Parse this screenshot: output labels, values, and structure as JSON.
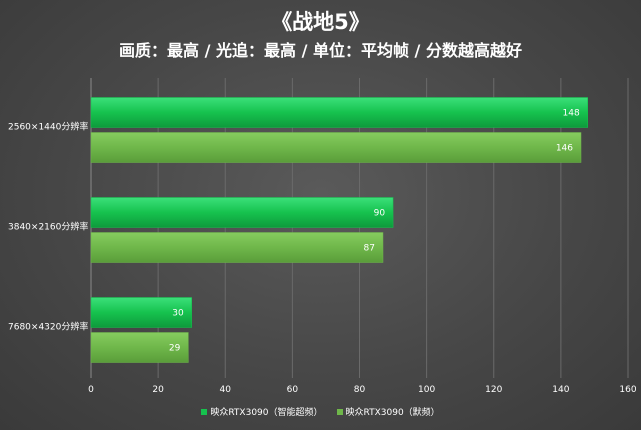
{
  "title": "《战地5》",
  "subtitle": "画质：最高 / 光追：最高 / 单位：平均帧 / 分数越高越好",
  "chart_data": {
    "type": "bar",
    "orientation": "horizontal",
    "categories": [
      "2560×1440分辨率",
      "3840×2160分辨率",
      "7680×4320分辨率"
    ],
    "series": [
      {
        "name": "映众RTX3090（智能超频）",
        "values": [
          148,
          90,
          30
        ],
        "color": "#16c24e"
      },
      {
        "name": "映众RTX3090（默频）",
        "values": [
          146,
          87,
          29
        ],
        "color": "#6fb74a"
      }
    ],
    "xlim": [
      0,
      160
    ],
    "xticks": [
      0,
      20,
      40,
      60,
      80,
      100,
      120,
      140,
      160
    ],
    "grid": true,
    "legend": "bottom"
  }
}
